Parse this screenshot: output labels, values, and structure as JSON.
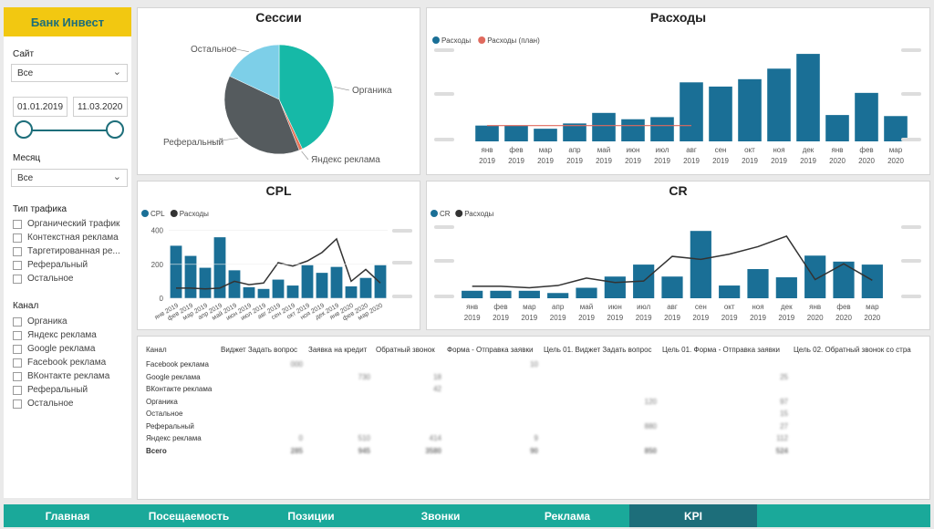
{
  "sidebar": {
    "brand": "Банк Инвест",
    "site_label": "Сайт",
    "site_value": "Все",
    "date_from": "01.01.2019",
    "date_to": "11.03.2020",
    "month_label": "Месяц",
    "month_value": "Все",
    "traffic_label": "Тип трафика",
    "traffic_items": [
      "Органический трафик",
      "Контекстная реклама",
      "Таргетированная ре...",
      "Реферальный",
      "Остальное"
    ],
    "channel_label": "Канал",
    "channel_items": [
      "Органика",
      "Яндекс реклама",
      "Google реклама",
      "Facebook реклама",
      "ВКонтакте реклама",
      "Реферальный",
      "Остальное"
    ]
  },
  "sessions": {
    "title": "Сессии",
    "chart_data": {
      "type": "pie",
      "title": "Сессии",
      "labels": [
        "Органика",
        "Яндекс реклама",
        "Реферальный",
        "Остальное"
      ],
      "values": [
        43,
        1,
        38,
        18
      ],
      "colors": [
        "#16b9a7",
        "#e4755b",
        "#555b5e",
        "#7dcfe8"
      ]
    }
  },
  "expenses": {
    "title": "Расходы",
    "legend": [
      "Расходы",
      "Расходы (план)"
    ],
    "chart_data": {
      "type": "bar",
      "title": "Расходы",
      "categories": [
        "янв 2019",
        "фев 2019",
        "мар 2019",
        "апр 2019",
        "май 2019",
        "июн 2019",
        "июл 2019",
        "авг 2019",
        "сен 2019",
        "окт 2019",
        "ноя 2019",
        "дек 2019",
        "янв 2020",
        "фев 2020",
        "мар 2020"
      ],
      "series": [
        {
          "name": "Расходы",
          "values": [
            15,
            15,
            12,
            17,
            27,
            21,
            23,
            56,
            52,
            59,
            69,
            83,
            25,
            46,
            24
          ]
        },
        {
          "name": "Расходы (план)",
          "values": [
            15,
            15,
            15,
            15,
            15,
            15,
            15,
            15,
            null,
            null,
            null,
            null,
            null,
            null,
            null
          ]
        }
      ],
      "ylim": [
        0,
        90
      ],
      "colors": [
        "#1a6f96",
        "#e06a5e"
      ]
    }
  },
  "cpl": {
    "title": "CPL",
    "legend": [
      "CPL",
      "Расходы"
    ],
    "chart_data": {
      "type": "bar",
      "title": "CPL",
      "categories": [
        "янв 2019",
        "фев 2019",
        "мар 2019",
        "апр 2019",
        "май 2019",
        "июн 2019",
        "июл 2019",
        "авг 2019",
        "сен 2019",
        "окт 2019",
        "ноя 2019",
        "дек 2019",
        "янв 2020",
        "фев 2020",
        "мар 2020"
      ],
      "yticks": [
        0,
        200,
        400
      ],
      "series": [
        {
          "name": "CPL",
          "values": [
            310,
            250,
            180,
            360,
            165,
            65,
            55,
            110,
            75,
            195,
            150,
            185,
            70,
            120,
            195
          ]
        },
        {
          "name": "Расходы",
          "values": [
            60,
            60,
            55,
            60,
            100,
            80,
            90,
            210,
            190,
            220,
            270,
            350,
            100,
            170,
            90
          ]
        }
      ],
      "ylim": [
        0,
        420
      ],
      "colors": [
        "#1a6f96",
        "#333333"
      ]
    }
  },
  "cr": {
    "title": "CR",
    "legend": [
      "CR",
      "Расходы"
    ],
    "chart_data": {
      "type": "bar",
      "title": "CR",
      "categories": [
        "янв 2019",
        "фев 2019",
        "мар 2019",
        "апр 2019",
        "май 2019",
        "июн 2019",
        "июл 2019",
        "авг 2019",
        "сен 2019",
        "окт 2019",
        "ноя 2019",
        "дек 2019",
        "янв 2020",
        "фев 2020",
        "мар 2020"
      ],
      "series": [
        {
          "name": "CR",
          "values": [
            10,
            10,
            10,
            7,
            14,
            29,
            45,
            29,
            90,
            17,
            39,
            28,
            57,
            49,
            45
          ]
        },
        {
          "name": "Расходы",
          "values": [
            16,
            16,
            14,
            17,
            27,
            21,
            23,
            56,
            52,
            59,
            69,
            83,
            25,
            46,
            24
          ]
        }
      ],
      "ylim": [
        0,
        100
      ],
      "colors": [
        "#1a6f96",
        "#333333"
      ]
    }
  },
  "kpi_table": {
    "headers": [
      "Канал",
      "Виджет Задать вопрос",
      "Заявка на кредит",
      "Обратный звонок",
      "Форма - Отправка заявки",
      "Цель 01. Виджет Задать вопрос",
      "Цель 01. Форма - Отправка заявки",
      "Цель 02. Обратный звонок со стра"
    ],
    "rows": [
      [
        "Facebook реклама",
        "000",
        "",
        "",
        "10",
        "",
        "",
        ""
      ],
      [
        "Google реклама",
        "",
        "730",
        "18",
        "",
        "",
        "25",
        ""
      ],
      [
        "ВКонтакте реклама",
        "",
        "",
        "42",
        "",
        "",
        "",
        ""
      ],
      [
        "Органика",
        "",
        "",
        "",
        "",
        "120",
        "97",
        ""
      ],
      [
        "Остальное",
        "",
        "",
        "",
        "",
        "",
        "15",
        ""
      ],
      [
        "Реферальный",
        "",
        "",
        "",
        "",
        "880",
        "27",
        ""
      ],
      [
        "Яндекс реклама",
        "0",
        "510",
        "414",
        "9",
        "",
        "112",
        ""
      ],
      [
        "Всего",
        "285",
        "945",
        "3580",
        "90",
        "850",
        "524",
        ""
      ]
    ]
  },
  "tabs": [
    "Главная",
    "Посещаемость",
    "Позиции",
    "Звонки",
    "Реклама",
    "KPI"
  ],
  "active_tab": "KPI"
}
